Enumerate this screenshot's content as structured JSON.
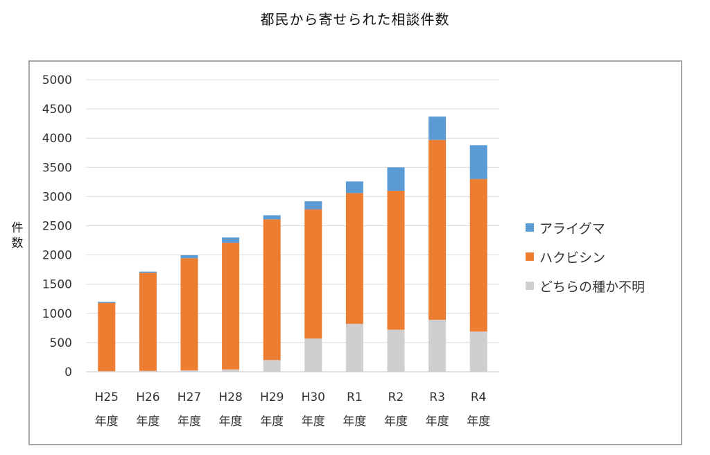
{
  "chart_data": {
    "type": "bar",
    "stacked": true,
    "title": "都民から寄せられた相談件数",
    "ylabel": [
      "件",
      "数"
    ],
    "xlabel": "",
    "ylim": [
      0,
      5000
    ],
    "yticks": [
      0,
      500,
      1000,
      1500,
      2000,
      2500,
      3000,
      3500,
      4000,
      4500,
      5000
    ],
    "grid": true,
    "legend_position": "right",
    "categories": [
      [
        "H25",
        "年度"
      ],
      [
        "H26",
        "年度"
      ],
      [
        "H27",
        "年度"
      ],
      [
        "H28",
        "年度"
      ],
      [
        "H29",
        "年度"
      ],
      [
        "H30",
        "年度"
      ],
      [
        "R1",
        "年度"
      ],
      [
        "R2",
        "年度"
      ],
      [
        "R3",
        "年度"
      ],
      [
        "R4",
        "年度"
      ]
    ],
    "series": [
      {
        "name": "どちらの種か不明",
        "color": "#d0cece",
        "values": [
          10,
          15,
          25,
          40,
          200,
          570,
          820,
          720,
          890,
          690
        ]
      },
      {
        "name": "ハクビシン",
        "color": "#ed7d31",
        "values": [
          1170,
          1680,
          1920,
          2170,
          2410,
          2210,
          2240,
          2380,
          3080,
          2610
        ]
      },
      {
        "name": "アライグマ",
        "color": "#5b9bd5",
        "values": [
          20,
          20,
          50,
          90,
          70,
          140,
          200,
          400,
          400,
          580
        ]
      }
    ],
    "legend_order": [
      "アライグマ",
      "ハクビシン",
      "どちらの種か不明"
    ]
  }
}
